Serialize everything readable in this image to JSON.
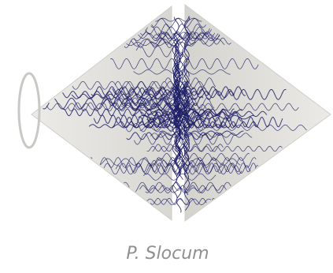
{
  "caption": "P. Slocum"
}
